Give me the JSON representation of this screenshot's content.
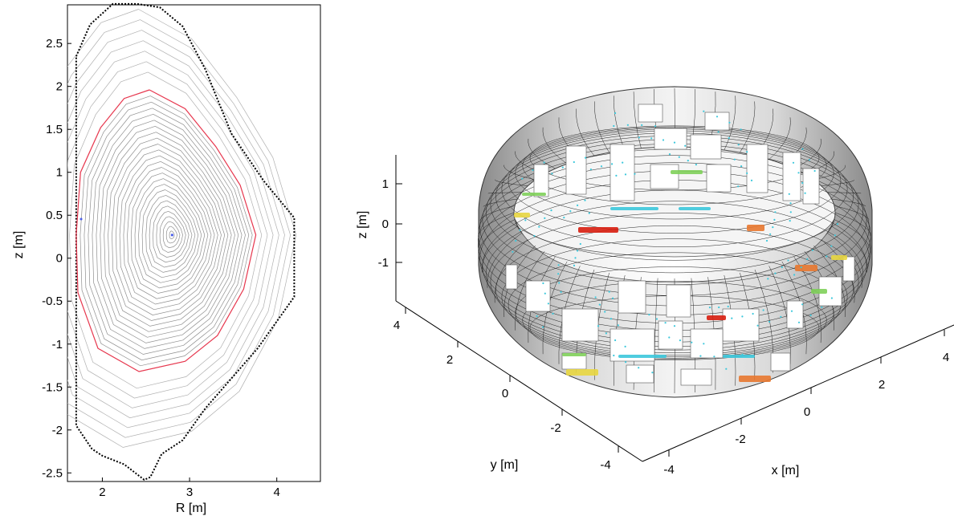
{
  "chart_data": [
    {
      "type": "contour",
      "xlabel": "R [m]",
      "ylabel": "z [m]",
      "xlim": [
        1.6,
        4.5
      ],
      "ylim": [
        -2.6,
        2.95
      ],
      "xticks": [
        "2",
        "3",
        "4"
      ],
      "yticks": [
        "2.5",
        "2",
        "1.5",
        "1",
        "0.5",
        "0",
        "-0.5",
        "-1",
        "-1.5",
        "-2",
        "-2.5"
      ],
      "magnetic_axis": {
        "R": 2.8,
        "z": 0.27
      },
      "separatrix_color": "#e8384f",
      "wall_outline": [
        [
          1.7,
          2.35
        ],
        [
          1.86,
          2.72
        ],
        [
          2.12,
          2.96
        ],
        [
          2.4,
          2.96
        ],
        [
          2.66,
          2.92
        ],
        [
          2.92,
          2.7
        ],
        [
          3.18,
          2.2
        ],
        [
          3.48,
          1.45
        ],
        [
          3.85,
          0.9
        ],
        [
          4.2,
          0.47
        ],
        [
          4.2,
          -0.45
        ],
        [
          3.78,
          -1.05
        ],
        [
          3.18,
          -1.75
        ],
        [
          2.92,
          -2.12
        ],
        [
          2.68,
          -2.28
        ],
        [
          2.55,
          -2.55
        ],
        [
          2.48,
          -2.58
        ],
        [
          2.25,
          -2.4
        ],
        [
          2.0,
          -2.3
        ],
        [
          1.88,
          -2.22
        ],
        [
          1.7,
          -1.95
        ],
        [
          1.7,
          2.35
        ]
      ],
      "separatrix": [
        [
          2.54,
          1.96
        ],
        [
          2.95,
          1.74
        ],
        [
          3.3,
          1.3
        ],
        [
          3.58,
          0.85
        ],
        [
          3.76,
          0.27
        ],
        [
          3.62,
          -0.36
        ],
        [
          3.32,
          -0.9
        ],
        [
          2.95,
          -1.2
        ],
        [
          2.42,
          -1.32
        ],
        [
          1.95,
          -1.05
        ],
        [
          1.72,
          -0.4
        ],
        [
          1.7,
          0.27
        ],
        [
          1.75,
          1.0
        ],
        [
          1.98,
          1.52
        ],
        [
          2.25,
          1.86
        ],
        [
          2.54,
          1.96
        ]
      ]
    },
    {
      "type": "3d-surface",
      "xlabel": "x [m]",
      "ylabel": "y [m]",
      "zlabel": "z [m]",
      "xticks": [
        "-4",
        "-2",
        "0",
        "2",
        "4"
      ],
      "yticks": [
        "-4",
        "-2",
        "0",
        "2",
        "4"
      ],
      "zticks": [
        "1",
        "0",
        "-1"
      ],
      "colormap": [
        "#3cc8dc",
        "#7fd05a",
        "#e8d640",
        "#e87830",
        "#d81e10"
      ]
    }
  ]
}
